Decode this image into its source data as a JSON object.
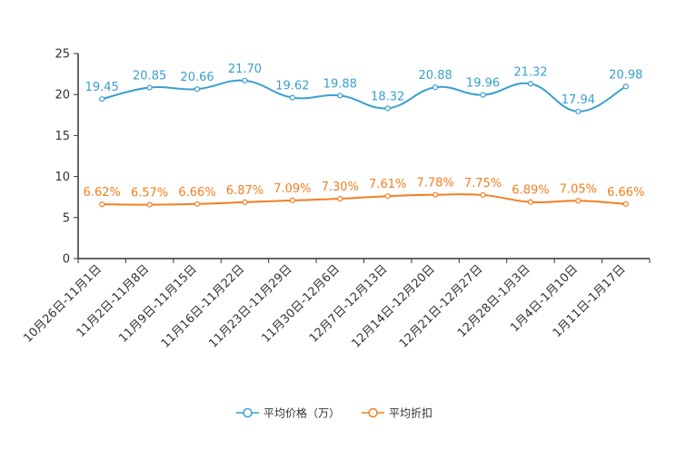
{
  "chart_data": {
    "type": "line",
    "categories": [
      "10月26日-11月1日",
      "11月2日-11月8日",
      "11月9日-11月15日",
      "11月16日-11月22日",
      "11月23日-11月29日",
      "11月30日-12月6日",
      "12月7日-12月13日",
      "12月14日-12月20日",
      "12月21日-12月27日",
      "12月28日-1月3日",
      "1月4日-1月10日",
      "1月11日-1月17日"
    ],
    "series": [
      {
        "name": "平均价格（万）",
        "color": "#3a9fd0",
        "values": [
          19.45,
          20.85,
          20.66,
          21.7,
          19.62,
          19.88,
          18.32,
          20.88,
          19.96,
          21.32,
          17.94,
          20.98
        ],
        "labels": [
          "19.45",
          "20.85",
          "20.66",
          "21.70",
          "19.62",
          "19.88",
          "18.32",
          "20.88",
          "19.96",
          "21.32",
          "17.94",
          "20.98"
        ]
      },
      {
        "name": "平均折扣",
        "color": "#f57d1f",
        "values": [
          6.62,
          6.57,
          6.66,
          6.87,
          7.09,
          7.3,
          7.61,
          7.78,
          7.75,
          6.89,
          7.05,
          6.66
        ],
        "labels": [
          "6.62%",
          "6.57%",
          "6.66%",
          "6.87%",
          "7.09%",
          "7.30%",
          "7.61%",
          "7.78%",
          "7.75%",
          "6.89%",
          "7.05%",
          "6.66%"
        ]
      }
    ],
    "ylim": [
      0,
      25
    ],
    "yticks": [
      "0",
      "5",
      "10",
      "15",
      "20",
      "25"
    ],
    "ytick_values": [
      0,
      5,
      10,
      15,
      20,
      25
    ],
    "legend_position": "bottom-center",
    "grid": false,
    "title": "",
    "xlabel": "",
    "ylabel": ""
  }
}
